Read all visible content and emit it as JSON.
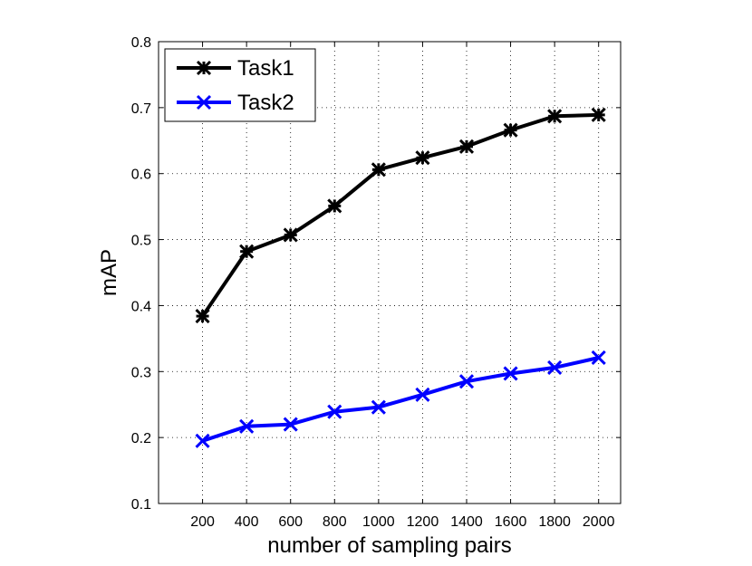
{
  "chart_data": {
    "type": "line",
    "x": [
      200,
      400,
      600,
      800,
      1000,
      1200,
      1400,
      1600,
      1800,
      2000
    ],
    "series": [
      {
        "name": "Task1",
        "color": "#000000",
        "marker": "asterisk",
        "values": [
          0.384,
          0.482,
          0.507,
          0.551,
          0.606,
          0.624,
          0.641,
          0.666,
          0.687,
          0.689
        ]
      },
      {
        "name": "Task2",
        "color": "#0000ff",
        "marker": "x",
        "values": [
          0.195,
          0.217,
          0.22,
          0.239,
          0.246,
          0.265,
          0.285,
          0.297,
          0.306,
          0.321
        ]
      }
    ],
    "xlabel": "number of sampling pairs",
    "ylabel": "mAP",
    "xlim": [
      0,
      2100
    ],
    "ylim": [
      0.1,
      0.8
    ],
    "xticks": [
      "200",
      "400",
      "600",
      "800",
      "1000",
      "1200",
      "1400",
      "1600",
      "1800",
      "2000"
    ],
    "yticks": [
      "0.1",
      "0.2",
      "0.3",
      "0.4",
      "0.5",
      "0.6",
      "0.7",
      "0.8"
    ],
    "grid": true,
    "legend_position": "top-left"
  }
}
